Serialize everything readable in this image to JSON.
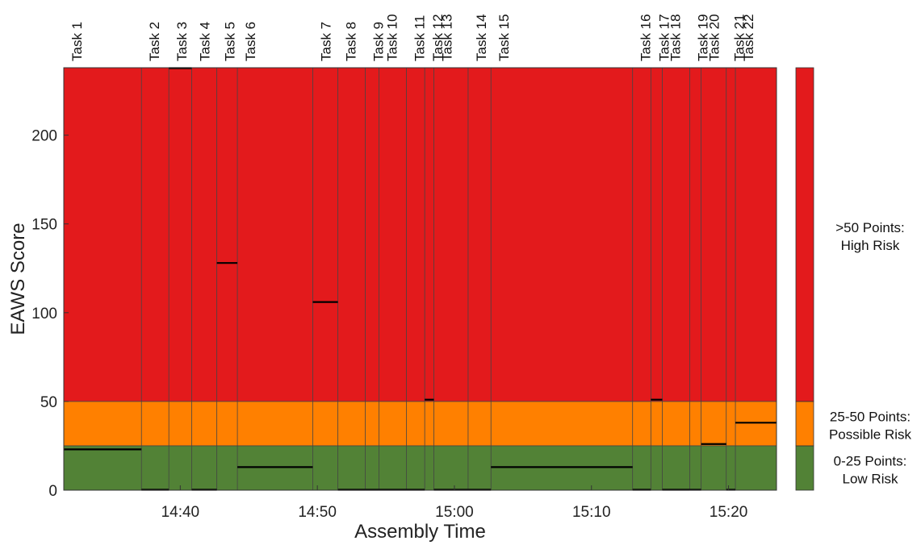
{
  "chart_data": {
    "type": "bar",
    "xlabel": "Assembly Time",
    "ylabel": "EAWS Score",
    "ylim": [
      0,
      238
    ],
    "xlim": [
      "14:31:30",
      "15:23:30"
    ],
    "yticks": [
      0,
      50,
      100,
      150,
      200
    ],
    "xticks": [
      "14:40",
      "14:50",
      "15:00",
      "15:10",
      "15:20"
    ],
    "zones": [
      {
        "from": 0,
        "to": 25,
        "color": "#528236",
        "label_line1": "0-25 Points:",
        "label_line2": "Low Risk"
      },
      {
        "from": 25,
        "to": 50,
        "color": "#ff8000",
        "label_line1": "25-50 Points:",
        "label_line2": "Possible Risk"
      },
      {
        "from": 50,
        "to": 238,
        "color": "#e31a1c",
        "label_line1": ">50 Points:",
        "label_line2": "High Risk"
      }
    ],
    "tasks": [
      {
        "label": "Task 1",
        "start": "14:31:30",
        "end": "14:37:10",
        "score": 23
      },
      {
        "label": "Task 2",
        "start": "14:37:10",
        "end": "14:39:10",
        "score": 0
      },
      {
        "label": "Task 3",
        "start": "14:39:10",
        "end": "14:40:50",
        "score": 238
      },
      {
        "label": "Task 4",
        "start": "14:40:50",
        "end": "14:42:40",
        "score": 0
      },
      {
        "label": "Task 5",
        "start": "14:42:40",
        "end": "14:44:10",
        "score": 128
      },
      {
        "label": "Task 6",
        "start": "14:44:10",
        "end": "14:49:40",
        "score": 13
      },
      {
        "label": "Task 7",
        "start": "14:49:40",
        "end": "14:51:30",
        "score": 106
      },
      {
        "label": "Task 8",
        "start": "14:51:30",
        "end": "14:53:30",
        "score": 0
      },
      {
        "label": "Task 9",
        "start": "14:53:30",
        "end": "14:54:30",
        "score": 0
      },
      {
        "label": "Task 10",
        "start": "14:54:30",
        "end": "14:56:30",
        "score": 0
      },
      {
        "label": "Task 11",
        "start": "14:56:30",
        "end": "14:57:50",
        "score": 0
      },
      {
        "label": "Task 12",
        "start": "14:57:50",
        "end": "14:58:30",
        "score": 51
      },
      {
        "label": "Task 13",
        "start": "14:58:30",
        "end": "15:01:00",
        "score": 0
      },
      {
        "label": "Task 14",
        "start": "15:01:00",
        "end": "15:02:40",
        "score": 0
      },
      {
        "label": "Task 15",
        "start": "15:02:40",
        "end": "15:13:00",
        "score": 13
      },
      {
        "label": "Task 16",
        "start": "15:13:00",
        "end": "15:14:20",
        "score": 0
      },
      {
        "label": "Task 17",
        "start": "15:14:20",
        "end": "15:15:10",
        "score": 51
      },
      {
        "label": "Task 18",
        "start": "15:15:10",
        "end": "15:17:10",
        "score": 0
      },
      {
        "label": "Task 19",
        "start": "15:17:10",
        "end": "15:18:00",
        "score": 0
      },
      {
        "label": "Task 20",
        "start": "15:18:00",
        "end": "15:19:50",
        "score": 26
      },
      {
        "label": "Task 21",
        "start": "15:19:50",
        "end": "15:20:30",
        "score": 0
      },
      {
        "label": "Task 22",
        "start": "15:20:30",
        "end": "15:23:30",
        "score": 38
      }
    ]
  }
}
